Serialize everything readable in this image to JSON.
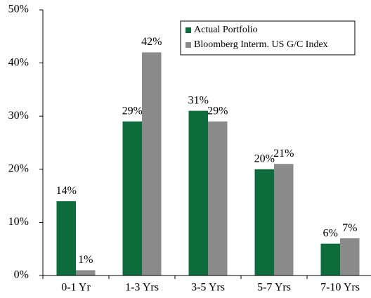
{
  "chart_data": {
    "type": "bar",
    "categories": [
      "0-1 Yr",
      "1-3 Yrs",
      "3-5 Yrs",
      "5-7 Yrs",
      "7-10 Yrs"
    ],
    "series": [
      {
        "name": "Actual Portfolio",
        "color": "#0e6b3c",
        "values": [
          14,
          29,
          31,
          20,
          6
        ],
        "value_labels": [
          "14%",
          "29%",
          "31%",
          "20%",
          "6%"
        ]
      },
      {
        "name": "Bloomberg Interm. US G/C Index",
        "color": "#8a8a8a",
        "values": [
          1,
          42,
          29,
          21,
          7
        ],
        "value_labels": [
          "1%",
          "42%",
          "29%",
          "21%",
          "7%"
        ]
      }
    ],
    "ylim": [
      0,
      50
    ],
    "yticks": [
      {
        "value": 0,
        "label": "0%"
      },
      {
        "value": 10,
        "label": "10%"
      },
      {
        "value": 20,
        "label": "20%"
      },
      {
        "value": 30,
        "label": "30%"
      },
      {
        "value": 40,
        "label": "40%"
      },
      {
        "value": 50,
        "label": "50%"
      }
    ],
    "grid": false,
    "legend": "top-right"
  }
}
